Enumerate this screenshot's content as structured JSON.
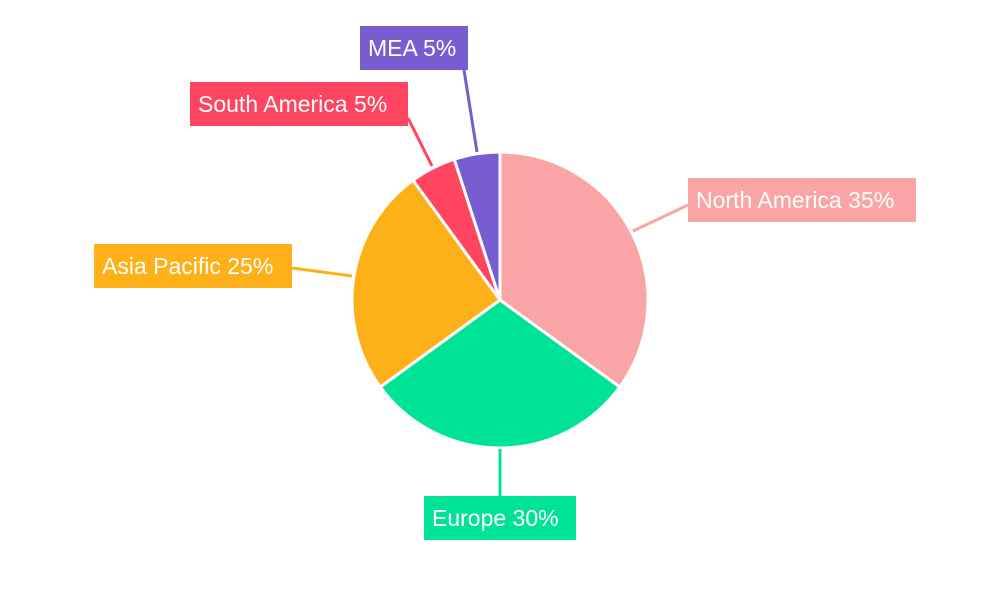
{
  "chart_data": {
    "type": "pie",
    "categories": [
      "North America",
      "Europe",
      "Asia Pacific",
      "South America",
      "MEA"
    ],
    "values": [
      35,
      30,
      25,
      5,
      5
    ],
    "data_labels": [
      "North America 35%",
      "Europe 30%",
      "Asia Pacific 25%",
      "South America 5%",
      "MEA 5%"
    ],
    "colors": [
      "#F9A5A5",
      "#00E396",
      "#FEB019",
      "#FF4560",
      "#775DD0"
    ],
    "start_angle": "top, clockwise",
    "legend": "none"
  }
}
